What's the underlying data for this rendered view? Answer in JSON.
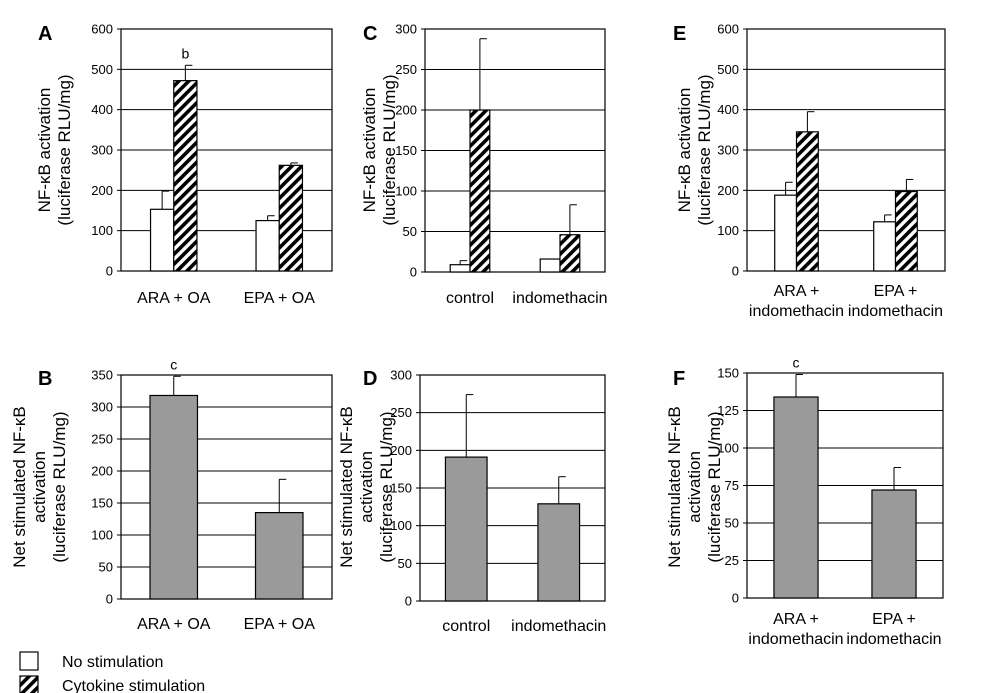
{
  "colors": {
    "no_stim": "#ffffff",
    "net": "#9a9a9a",
    "grid": "#000000",
    "hatch": "#000000"
  },
  "legend": {
    "items": [
      {
        "label": "No stimulation",
        "pattern": "white"
      },
      {
        "label": "Cytokine stimulation",
        "pattern": "hatched"
      }
    ]
  },
  "chart_data": [
    {
      "panel": "A",
      "type": "bar",
      "ylabel": [
        "NF-κB activation",
        "(luciferase RLU/mg)"
      ],
      "ylim": [
        0,
        600
      ],
      "yticks": [
        0,
        100,
        200,
        300,
        400,
        500,
        600
      ],
      "categories": [
        "ARA + OA",
        "EPA + OA"
      ],
      "series": [
        {
          "style": "white",
          "values": [
            153,
            125
          ],
          "errors": [
            45,
            12
          ]
        },
        {
          "style": "hatched",
          "values": [
            472,
            262
          ],
          "errors": [
            38,
            6
          ]
        }
      ],
      "annotations": [
        {
          "text": "b",
          "category": 0,
          "series": 1
        }
      ]
    },
    {
      "panel": "C",
      "type": "bar",
      "ylabel": [
        "NF-κB activation",
        "(luciferase RLU/mg)"
      ],
      "ylim": [
        0,
        300
      ],
      "yticks": [
        0,
        50,
        100,
        150,
        200,
        250,
        300
      ],
      "categories": [
        "control",
        "indomethacin"
      ],
      "series": [
        {
          "style": "white",
          "values": [
            9,
            16
          ],
          "errors": [
            5,
            0
          ]
        },
        {
          "style": "hatched",
          "values": [
            200,
            46
          ],
          "errors": [
            88,
            37
          ]
        }
      ],
      "annotations": []
    },
    {
      "panel": "E",
      "type": "bar",
      "ylabel": [
        "NF-κB activation",
        "(luciferase RLU/mg)"
      ],
      "ylim": [
        0,
        600
      ],
      "yticks": [
        0,
        100,
        200,
        300,
        400,
        500,
        600
      ],
      "categories": [
        "ARA +\nindomethacin",
        "EPA +\nindomethacin"
      ],
      "series": [
        {
          "style": "white",
          "values": [
            188,
            122
          ],
          "errors": [
            32,
            17
          ]
        },
        {
          "style": "hatched",
          "values": [
            345,
            197
          ],
          "errors": [
            50,
            30
          ]
        }
      ],
      "annotations": []
    },
    {
      "panel": "B",
      "type": "bar",
      "ylabel": [
        "Net stimulated NF-κB",
        "activation",
        "(luciferase RLU/mg)"
      ],
      "ylim": [
        0,
        350
      ],
      "yticks": [
        0,
        50,
        100,
        150,
        200,
        250,
        300,
        350
      ],
      "categories": [
        "ARA + OA",
        "EPA + OA"
      ],
      "series": [
        {
          "style": "gray",
          "values": [
            318,
            135
          ],
          "errors": [
            30,
            52
          ]
        }
      ],
      "annotations": [
        {
          "text": "c",
          "category": 0,
          "series": 0
        }
      ]
    },
    {
      "panel": "D",
      "type": "bar",
      "ylabel": [
        "Net stimulated NF-κB",
        "activation",
        "(luciferase RLU/mg)"
      ],
      "ylim": [
        0,
        300
      ],
      "yticks": [
        0,
        50,
        100,
        150,
        200,
        250,
        300
      ],
      "categories": [
        "control",
        "indomethacin"
      ],
      "series": [
        {
          "style": "gray",
          "values": [
            191,
            129
          ],
          "errors": [
            83,
            36
          ]
        }
      ],
      "annotations": []
    },
    {
      "panel": "F",
      "type": "bar",
      "ylabel": [
        "Net stimulated NF-κB",
        "activation",
        "(luciferase RLU/mg)"
      ],
      "ylim": [
        0,
        150
      ],
      "yticks": [
        0,
        25,
        50,
        75,
        100,
        125,
        150
      ],
      "categories": [
        "ARA +\nindomethacin",
        "EPA +\nindomethacin"
      ],
      "series": [
        {
          "style": "gray",
          "values": [
            134,
            72
          ],
          "errors": [
            15,
            15
          ]
        }
      ],
      "annotations": [
        {
          "text": "c",
          "category": 0,
          "series": 0
        }
      ]
    }
  ]
}
